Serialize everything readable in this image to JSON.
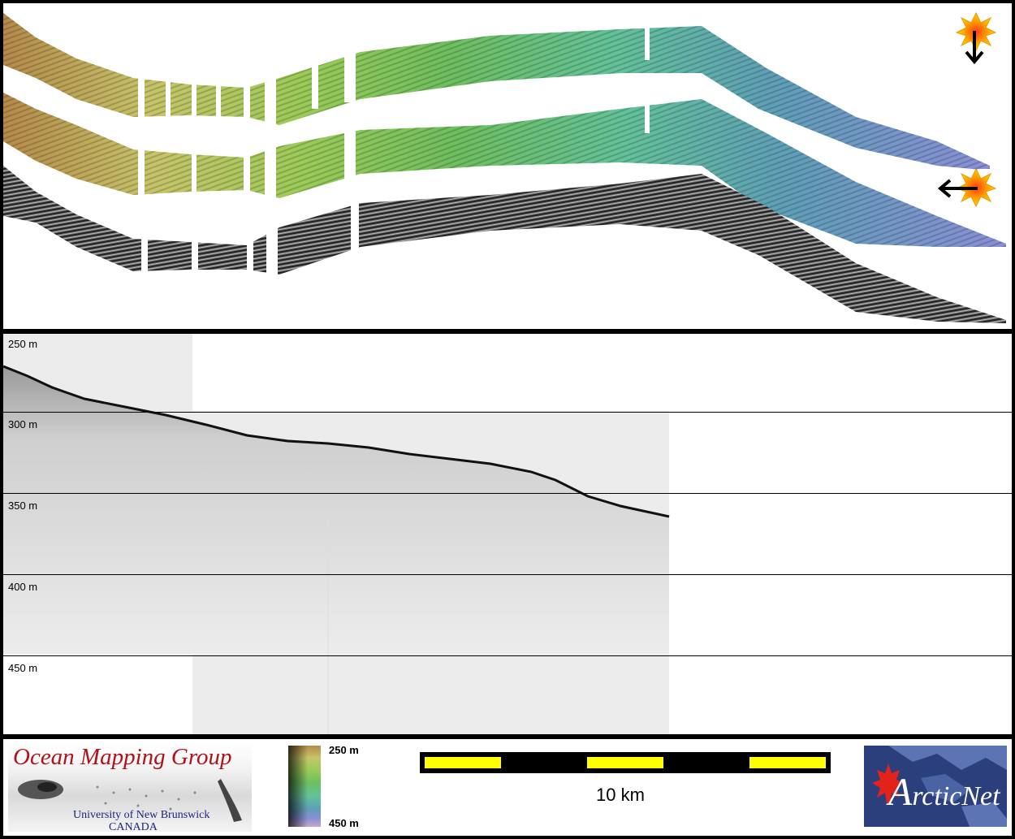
{
  "profile": {
    "depth_labels": [
      "250 m",
      "300 m",
      "350 m",
      "400 m",
      "450 m"
    ]
  },
  "legend": {
    "top_label": "250 m",
    "bottom_label": "450 m"
  },
  "scale_bar": {
    "label": "10 km"
  },
  "logos": {
    "omg_title": "Ocean Mapping Group",
    "omg_university": "University of New Brunswick",
    "omg_country": "CANADA",
    "arcticnet_initial": "A",
    "arcticnet_rest": "rcticNet"
  },
  "colors": {
    "frame": "#000000",
    "scale_yellow": "#ffff00",
    "omg_red": "#b0121b",
    "omg_blue": "#1a237e",
    "arcticnet_bg": "#2a3f7c",
    "maple_red": "#e2231a"
  }
}
